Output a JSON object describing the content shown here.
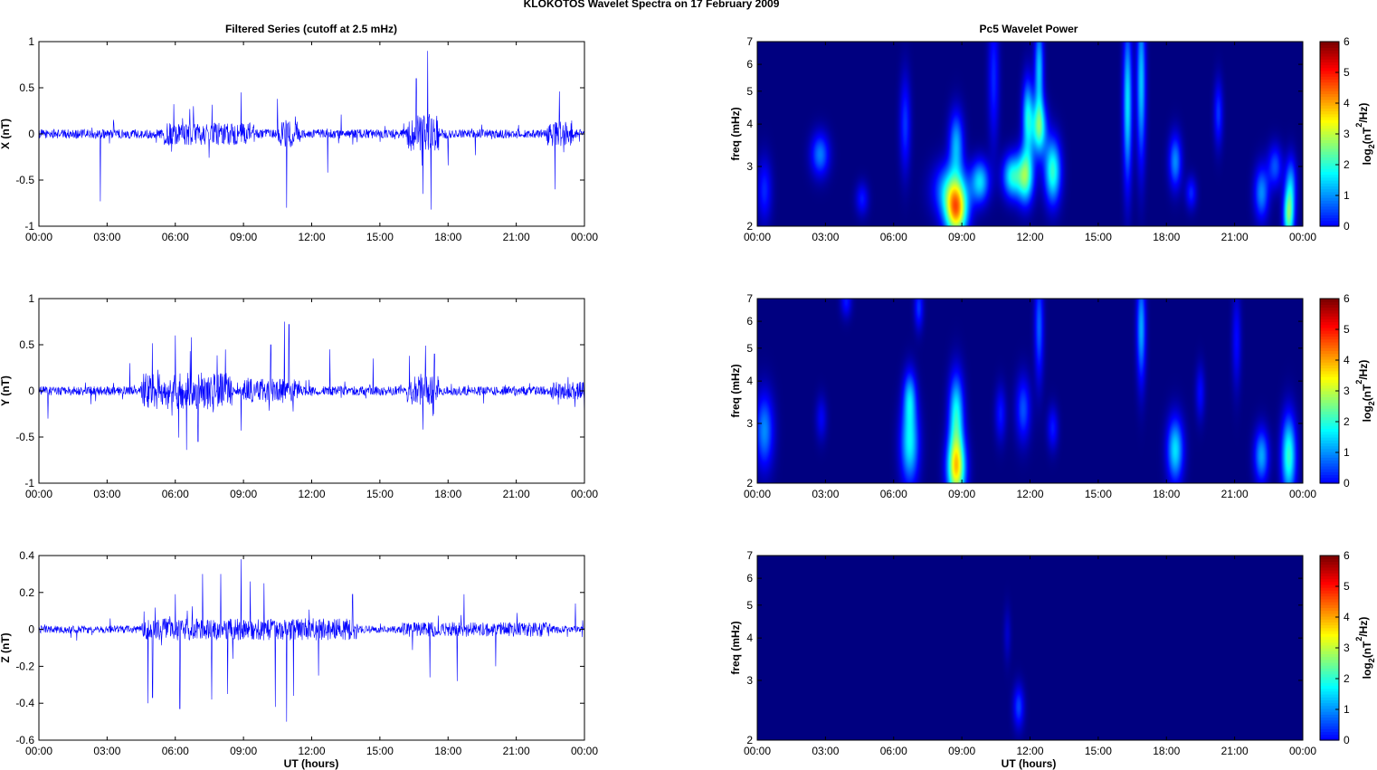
{
  "figure": {
    "title": "KLOKOTOS Wavelet Spectra on 17 February  2009",
    "left_title": "Filtered Series (cutoff at 2.5 mHz)",
    "right_title": "Pc5 Wavelet Power",
    "xlabel": "UT (hours)"
  },
  "chart_data": [
    {
      "type": "line",
      "name": "x-series",
      "ylabel": "X (nT)",
      "xlim": [
        0,
        24
      ],
      "ylim": [
        -1,
        1
      ],
      "yticks": [
        -1,
        -0.5,
        0,
        0.5,
        1
      ],
      "ytick_labels": [
        "-1",
        "-0.5",
        "0",
        "0.5",
        "1"
      ],
      "xtick_labels": [
        "00:00",
        "03:00",
        "06:00",
        "09:00",
        "12:00",
        "15:00",
        "18:00",
        "21:00",
        "00:00"
      ],
      "color": "#0000ff",
      "noise_level": 0.05,
      "active_hours": [
        [
          5.5,
          9.5,
          0.12
        ],
        [
          10.5,
          11.5,
          0.15
        ],
        [
          16.2,
          17.6,
          0.2
        ],
        [
          22.3,
          23.5,
          0.14
        ]
      ],
      "spikes": [
        [
          2.7,
          -0.73
        ],
        [
          3.3,
          0.12
        ],
        [
          6.8,
          0.3
        ],
        [
          8.9,
          0.45
        ],
        [
          10.5,
          0.38
        ],
        [
          10.9,
          -0.8
        ],
        [
          12.7,
          -0.42
        ],
        [
          13.3,
          0.21
        ],
        [
          16.6,
          0.6
        ],
        [
          16.9,
          -0.65
        ],
        [
          17.1,
          0.9
        ],
        [
          17.25,
          -0.82
        ],
        [
          18.0,
          -0.34
        ],
        [
          19.2,
          -0.23
        ],
        [
          22.7,
          -0.6
        ],
        [
          22.9,
          0.46
        ]
      ]
    },
    {
      "type": "line",
      "name": "y-series",
      "ylabel": "Y (nT)",
      "xlim": [
        0,
        24
      ],
      "ylim": [
        -1,
        1
      ],
      "yticks": [
        -1,
        -0.5,
        0,
        0.5,
        1
      ],
      "ytick_labels": [
        "-1",
        "-0.5",
        "0",
        "0.5",
        "1"
      ],
      "xtick_labels": [
        "00:00",
        "03:00",
        "06:00",
        "09:00",
        "12:00",
        "15:00",
        "18:00",
        "21:00",
        "00:00"
      ],
      "color": "#0000ff",
      "noise_level": 0.05,
      "active_hours": [
        [
          4.5,
          8.5,
          0.2
        ],
        [
          9.0,
          11.5,
          0.13
        ],
        [
          16.2,
          17.6,
          0.16
        ],
        [
          22.5,
          24,
          0.1
        ]
      ],
      "spikes": [
        [
          0.4,
          -0.3
        ],
        [
          4.0,
          0.3
        ],
        [
          6.0,
          0.6
        ],
        [
          6.5,
          -0.64
        ],
        [
          6.7,
          0.58
        ],
        [
          7.0,
          -0.55
        ],
        [
          8.9,
          -0.43
        ],
        [
          10.2,
          0.5
        ],
        [
          10.8,
          0.75
        ],
        [
          11.0,
          0.72
        ],
        [
          12.8,
          0.45
        ],
        [
          14.7,
          0.35
        ],
        [
          16.3,
          0.38
        ],
        [
          16.9,
          -0.42
        ],
        [
          17.4,
          0.4
        ],
        [
          24,
          -0.33
        ]
      ]
    },
    {
      "type": "line",
      "name": "z-series",
      "ylabel": "Z (nT)",
      "xlim": [
        0,
        24
      ],
      "ylim": [
        -0.6,
        0.4
      ],
      "yticks": [
        -0.6,
        -0.4,
        -0.2,
        0,
        0.2,
        0.4
      ],
      "ytick_labels": [
        "-0.6",
        "-0.4",
        "-0.2",
        "0",
        "0.2",
        "0.4"
      ],
      "xtick_labels": [
        "00:00",
        "03:00",
        "06:00",
        "09:00",
        "12:00",
        "15:00",
        "18:00",
        "21:00",
        "00:00"
      ],
      "color": "#0000ff",
      "noise_level": 0.02,
      "active_hours": [
        [
          4.5,
          14.0,
          0.06
        ],
        [
          16.0,
          22.5,
          0.04
        ]
      ],
      "spikes": [
        [
          4.8,
          -0.4
        ],
        [
          5.0,
          -0.37
        ],
        [
          6.0,
          0.19
        ],
        [
          6.2,
          -0.43
        ],
        [
          7.2,
          0.3
        ],
        [
          7.6,
          -0.38
        ],
        [
          8.0,
          0.3
        ],
        [
          8.3,
          -0.35
        ],
        [
          8.9,
          0.38
        ],
        [
          9.3,
          0.26
        ],
        [
          9.9,
          0.25
        ],
        [
          10.4,
          -0.42
        ],
        [
          10.9,
          -0.5
        ],
        [
          11.2,
          -0.36
        ],
        [
          12.3,
          -0.25
        ],
        [
          13.8,
          0.19
        ],
        [
          17.2,
          -0.26
        ],
        [
          18.4,
          -0.28
        ],
        [
          18.7,
          0.19
        ],
        [
          20.1,
          -0.2
        ],
        [
          23.6,
          0.14
        ]
      ]
    },
    {
      "type": "heatmap",
      "name": "x-wavelet-power",
      "ylabel": "freq (mHz)",
      "yscale": "log",
      "xlim": [
        0,
        24
      ],
      "ylim": [
        2,
        7
      ],
      "yticks": [
        2,
        3,
        4,
        5,
        6,
        7
      ],
      "ytick_labels": [
        "2",
        "3",
        "4",
        "5",
        "6",
        "7"
      ],
      "xtick_labels": [
        "00:00",
        "03:00",
        "06:00",
        "09:00",
        "12:00",
        "15:00",
        "18:00",
        "21:00",
        "00:00"
      ],
      "colorbar_label": "log2(nT2/Hz)",
      "colorbar_ticks": [
        "0",
        "1",
        "2",
        "3",
        "4",
        "5",
        "6"
      ],
      "clim": [
        0,
        6
      ],
      "blobs": [
        [
          0.3,
          2.55,
          0.08,
          0.12,
          1.1
        ],
        [
          2.75,
          3.25,
          0.1,
          0.08,
          1.7
        ],
        [
          4.6,
          2.4,
          0.07,
          0.06,
          1.0
        ],
        [
          6.5,
          4.0,
          0.06,
          0.18,
          1.2
        ],
        [
          8.5,
          2.55,
          0.18,
          0.1,
          2.2
        ],
        [
          8.75,
          2.2,
          0.12,
          0.1,
          4.3
        ],
        [
          8.75,
          3.5,
          0.08,
          0.12,
          2.0
        ],
        [
          9.8,
          2.7,
          0.1,
          0.08,
          2.3
        ],
        [
          10.4,
          5.5,
          0.06,
          0.25,
          1.1
        ],
        [
          11.2,
          2.8,
          0.1,
          0.08,
          2.6
        ],
        [
          11.8,
          2.8,
          0.09,
          0.1,
          3.2
        ],
        [
          11.9,
          4.2,
          0.06,
          0.14,
          2.5
        ],
        [
          12.4,
          3.9,
          0.08,
          0.1,
          2.9
        ],
        [
          12.4,
          5.8,
          0.05,
          0.18,
          2.2
        ],
        [
          13.0,
          2.9,
          0.09,
          0.12,
          2.9
        ],
        [
          16.3,
          4.6,
          0.05,
          0.3,
          2.4
        ],
        [
          16.9,
          5.3,
          0.05,
          0.3,
          2.2
        ],
        [
          18.4,
          3.1,
          0.07,
          0.1,
          1.8
        ],
        [
          19.1,
          2.5,
          0.06,
          0.06,
          1.1
        ],
        [
          20.3,
          4.3,
          0.05,
          0.12,
          1.2
        ],
        [
          22.2,
          2.5,
          0.08,
          0.1,
          1.8
        ],
        [
          22.8,
          3.0,
          0.08,
          0.08,
          1.4
        ],
        [
          23.4,
          2.15,
          0.06,
          0.1,
          3.2
        ],
        [
          23.5,
          2.7,
          0.06,
          0.1,
          1.6
        ]
      ]
    },
    {
      "type": "heatmap",
      "name": "y-wavelet-power",
      "ylabel": "freq (mHz)",
      "yscale": "log",
      "xlim": [
        0,
        24
      ],
      "ylim": [
        2,
        7
      ],
      "yticks": [
        2,
        3,
        4,
        5,
        6,
        7
      ],
      "ytick_labels": [
        "2",
        "3",
        "4",
        "5",
        "6",
        "7"
      ],
      "xtick_labels": [
        "00:00",
        "03:00",
        "06:00",
        "09:00",
        "12:00",
        "15:00",
        "18:00",
        "21:00",
        "00:00"
      ],
      "colorbar_label": "log2(nT2/Hz)",
      "colorbar_ticks": [
        "0",
        "1",
        "2",
        "3",
        "4",
        "5",
        "6"
      ],
      "clim": [
        0,
        6
      ],
      "blobs": [
        [
          0.3,
          2.85,
          0.1,
          0.14,
          1.8
        ],
        [
          2.8,
          3.1,
          0.06,
          0.08,
          0.8
        ],
        [
          3.9,
          6.9,
          0.06,
          0.06,
          1.0
        ],
        [
          6.7,
          2.6,
          0.1,
          0.15,
          2.5
        ],
        [
          6.7,
          3.6,
          0.07,
          0.1,
          1.8
        ],
        [
          7.1,
          6.6,
          0.05,
          0.08,
          1.2
        ],
        [
          8.75,
          2.2,
          0.1,
          0.12,
          4.3
        ],
        [
          8.75,
          3.2,
          0.08,
          0.15,
          2.6
        ],
        [
          10.7,
          3.2,
          0.06,
          0.1,
          1.0
        ],
        [
          11.7,
          3.3,
          0.08,
          0.12,
          1.4
        ],
        [
          12.4,
          5.8,
          0.05,
          0.2,
          1.5
        ],
        [
          13.0,
          2.9,
          0.06,
          0.08,
          1.0
        ],
        [
          16.9,
          5.7,
          0.05,
          0.2,
          2.0
        ],
        [
          18.4,
          2.5,
          0.09,
          0.12,
          2.4
        ],
        [
          19.5,
          3.7,
          0.05,
          0.1,
          0.9
        ],
        [
          21.1,
          5.3,
          0.05,
          0.18,
          0.9
        ],
        [
          22.2,
          2.4,
          0.08,
          0.1,
          2.0
        ],
        [
          23.4,
          2.4,
          0.08,
          0.15,
          2.9
        ]
      ]
    },
    {
      "type": "heatmap",
      "name": "z-wavelet-power",
      "ylabel": "freq (mHz)",
      "yscale": "log",
      "xlim": [
        0,
        24
      ],
      "ylim": [
        2,
        7
      ],
      "yticks": [
        2,
        3,
        4,
        5,
        6,
        7
      ],
      "ytick_labels": [
        "2",
        "3",
        "4",
        "5",
        "6",
        "7"
      ],
      "xtick_labels": [
        "00:00",
        "03:00",
        "06:00",
        "09:00",
        "12:00",
        "15:00",
        "18:00",
        "21:00",
        "00:00"
      ],
      "colorbar_label": "log2(nT2/Hz)",
      "colorbar_ticks": [
        "0",
        "1",
        "2",
        "3",
        "4",
        "5",
        "6"
      ],
      "clim": [
        0,
        6
      ],
      "blobs": [
        [
          11.5,
          2.5,
          0.06,
          0.08,
          1.3
        ],
        [
          11.0,
          4.1,
          0.04,
          0.1,
          0.5
        ]
      ]
    }
  ]
}
